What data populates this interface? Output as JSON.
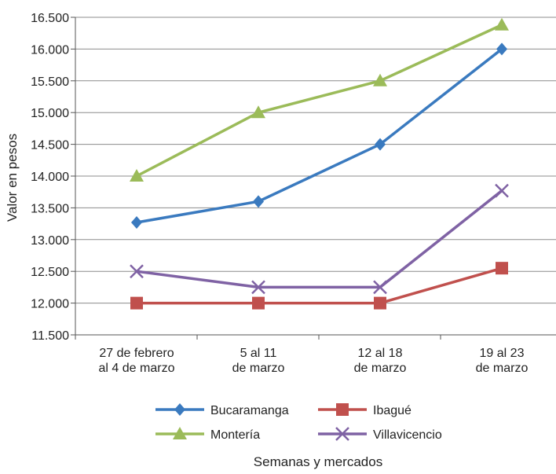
{
  "chart_data": {
    "type": "line",
    "title": "",
    "xlabel": "Semanas y mercados",
    "ylabel": "Valor en pesos",
    "categories": [
      [
        "27 de febrero",
        "al 4 de marzo"
      ],
      [
        "5 al 11",
        "de marzo"
      ],
      [
        "12 al 18",
        "de marzo"
      ],
      [
        "19 al 23",
        "de marzo"
      ]
    ],
    "ylim": [
      11500,
      16500
    ],
    "ytick_step": 500,
    "ytick_labels": [
      "11.500",
      "12.000",
      "12.500",
      "13.000",
      "13.500",
      "14.000",
      "14.500",
      "15.000",
      "15.500",
      "16.000",
      "16.500"
    ],
    "grid": true,
    "legend_position": "bottom",
    "series": [
      {
        "name": "Bucaramanga",
        "values": [
          13270,
          13600,
          14500,
          16000
        ],
        "color": "#3a7abf",
        "marker": "diamond"
      },
      {
        "name": "Ibagué",
        "values": [
          12000,
          12000,
          12000,
          12550
        ],
        "color": "#c0504d",
        "marker": "square"
      },
      {
        "name": "Montería",
        "values": [
          14000,
          15000,
          15500,
          16380
        ],
        "color": "#9bbb59",
        "marker": "triangle"
      },
      {
        "name": "Villavicencio",
        "values": [
          12500,
          12250,
          12250,
          13770
        ],
        "color": "#7f62a4",
        "marker": "x"
      }
    ]
  }
}
